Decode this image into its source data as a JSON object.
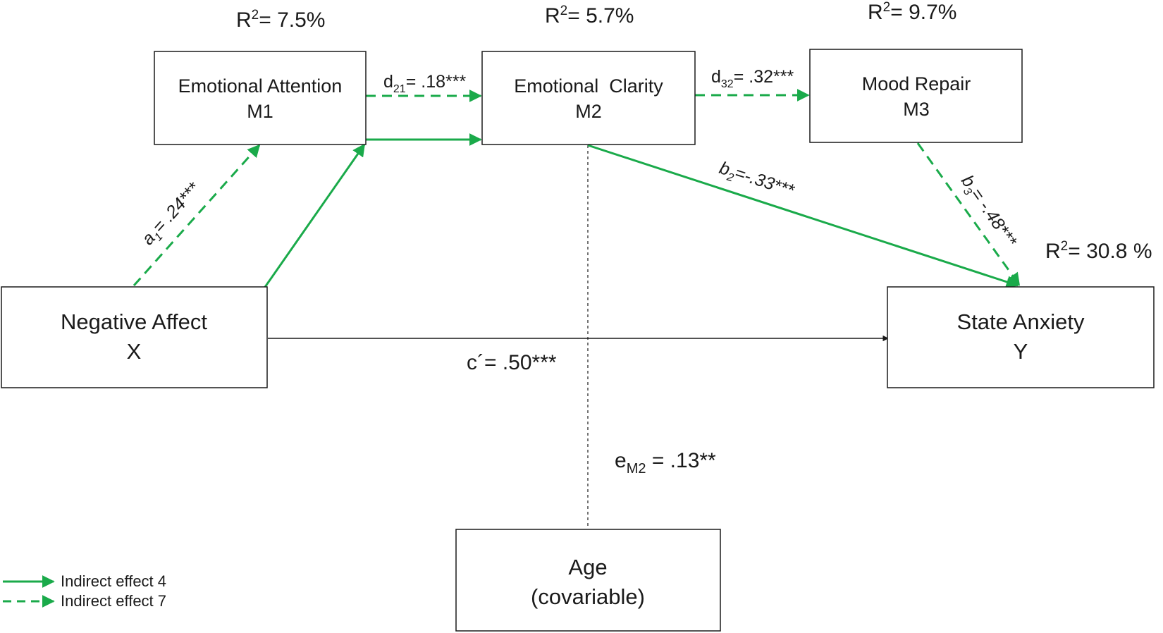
{
  "colors": {
    "green": "#1aaa4a",
    "black": "#1a1a1a",
    "background": "#ffffff"
  },
  "nodes": {
    "m1": {
      "title": "Emotional Attention",
      "subtitle": "M1",
      "r2_prefix": "R",
      "r2_sup": "2",
      "r2_value": "= 7.5%"
    },
    "m2": {
      "title": "Emotional  Clarity",
      "subtitle": "M2",
      "r2_prefix": "R",
      "r2_sup": "2",
      "r2_value": "= 5.7%"
    },
    "m3": {
      "title": "Mood Repair",
      "subtitle": "M3",
      "r2_prefix": "R",
      "r2_sup": "2",
      "r2_value": "= 9.7%"
    },
    "x": {
      "title": "Negative Affect",
      "subtitle": "X"
    },
    "y": {
      "title": "State Anxiety",
      "subtitle": "Y",
      "r2_prefix": "R",
      "r2_sup": "2",
      "r2_value": "= 30.8 %"
    },
    "age": {
      "title": "Age",
      "subtitle": "(covariable)"
    }
  },
  "paths": {
    "a1": {
      "main": "a",
      "sub": "1",
      "value": "= .24***"
    },
    "d21": {
      "main": "d",
      "sub": "21",
      "value": "= .18***"
    },
    "d32": {
      "main": "d",
      "sub": "32",
      "value": "= .32***"
    },
    "b2": {
      "main": "b",
      "sub": "2",
      "value": "=-.33***"
    },
    "b3": {
      "main": "b",
      "sub": "3",
      "value": "= -.48***"
    },
    "c_prime": {
      "value": "c´= .50***"
    },
    "em2": {
      "main": "e",
      "sub": "M2",
      "value": " = .13**"
    }
  },
  "legend": {
    "solid": {
      "label": "Indirect effect 4",
      "style": "solid"
    },
    "dashed": {
      "label": "Indirect effect 7",
      "style": "dashed"
    }
  }
}
